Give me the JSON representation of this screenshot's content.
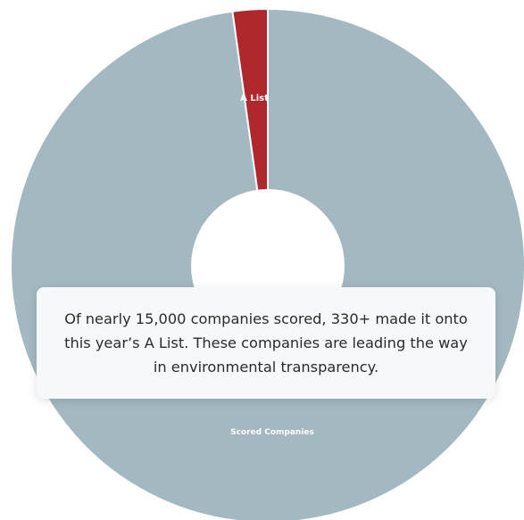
{
  "chart_data": {
    "type": "pie",
    "title": "",
    "donut": true,
    "slices": [
      {
        "name": "A List",
        "value": 330,
        "color": "#b0282e"
      },
      {
        "name": "Scored Companies",
        "value": 14670,
        "color": "#a3b8c1"
      }
    ]
  },
  "card": {
    "text": "Of nearly 15,000 companies scored, 330+ made it onto this year’s A List. These companies are leading the way in environmental transparency."
  }
}
